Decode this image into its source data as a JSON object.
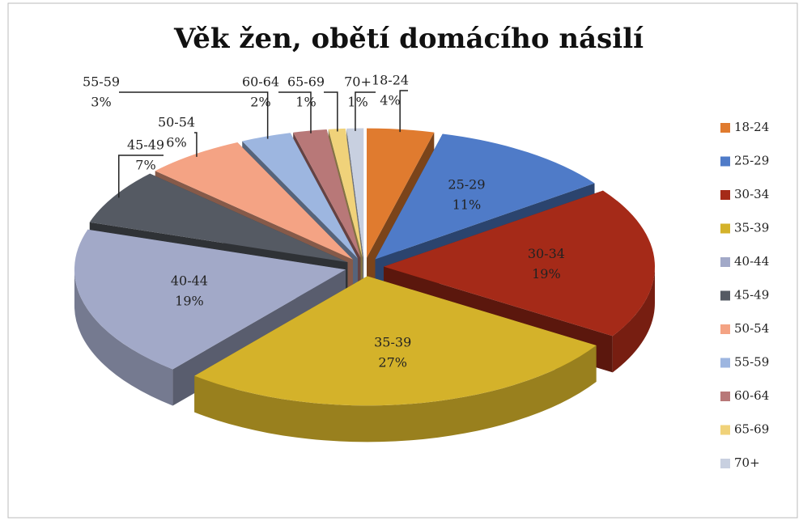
{
  "chart_data": {
    "type": "pie3d",
    "title": "Věk žen, obětí  domácího násilí",
    "categories": [
      "18-24",
      "25-29",
      "30-34",
      "35-39",
      "40-44",
      "45-49",
      "50-54",
      "55-59",
      "60-64",
      "65-69",
      "70+"
    ],
    "values": [
      4,
      11,
      19,
      27,
      19,
      7,
      6,
      3,
      2,
      1,
      1
    ],
    "value_labels": [
      "4%",
      "11%",
      "19%",
      "27%",
      "19%",
      "7%",
      "6%",
      "3%",
      "2%",
      "1%",
      "1%"
    ],
    "colors": [
      "#e07b2f",
      "#4f7bc8",
      "#a52a18",
      "#d4b22a",
      "#a2a9c8",
      "#555a63",
      "#f4a384",
      "#9db6e0",
      "#b87878",
      "#f0d27a",
      "#c8d0e0"
    ],
    "legend": "right"
  }
}
